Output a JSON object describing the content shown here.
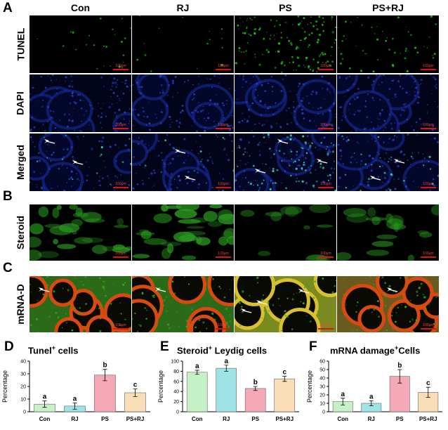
{
  "panels": {
    "A": "A",
    "B": "B",
    "C": "C",
    "D": "D",
    "E": "E",
    "F": "F"
  },
  "columns": [
    "Con",
    "RJ",
    "PS",
    "PS+RJ"
  ],
  "rows": {
    "tunel": "TUNEL",
    "dapi": "DAPI",
    "merged": "Merged",
    "steroid": "Steroid",
    "mrna": "mRNA-D"
  },
  "scale_bar": "100μm",
  "colors": {
    "tunel": "#1db81d",
    "dapi": "#1a2fa8",
    "steroid": "#2a9a20",
    "mrna_green": "#36a81e",
    "mrna_red": "#d84a10",
    "scale_bar": "#e01010",
    "arrow": "#ffffff"
  },
  "chart_data": [
    {
      "type": "bar",
      "title": "Tunel",
      "title_sup": "+",
      "title_suffix": " cells",
      "ylabel": "Percentage",
      "categories": [
        "Con",
        "RJ",
        "PS",
        "PS+RJ"
      ],
      "values": [
        6,
        4.5,
        29,
        15
      ],
      "errors": [
        2.5,
        2.5,
        4.5,
        3
      ],
      "letters": [
        "a",
        "a",
        "b",
        "c"
      ],
      "bar_colors": [
        "#c6f0c6",
        "#9fe3e6",
        "#f5a8b5",
        "#f8ddb6"
      ],
      "ylim": [
        0,
        40
      ],
      "yticks": [
        0,
        10,
        20,
        30,
        40
      ]
    },
    {
      "type": "bar",
      "title": "Steroid",
      "title_sup": "+",
      "title_suffix": " Leydig cells",
      "ylabel": "Percentage",
      "categories": [
        "Con",
        "RJ",
        "PS",
        "PS+RJ"
      ],
      "values": [
        78,
        86,
        46,
        65
      ],
      "errors": [
        4,
        6,
        4,
        5
      ],
      "letters": [
        "a",
        "a",
        "b",
        "c"
      ],
      "bar_colors": [
        "#c6f0c6",
        "#9fe3e6",
        "#f5a8b5",
        "#f8ddb6"
      ],
      "ylim": [
        0,
        100
      ],
      "yticks": [
        0,
        20,
        40,
        60,
        80,
        100
      ]
    },
    {
      "type": "bar",
      "title": "mRNA damage",
      "title_sup": "+",
      "title_suffix": "Cells",
      "ylabel": "Percentage",
      "categories": [
        "Con",
        "RJ",
        "PS",
        "PS+RJ"
      ],
      "values": [
        12,
        10,
        42,
        23
      ],
      "errors": [
        4,
        3,
        8,
        6
      ],
      "letters": [
        "a",
        "a",
        "b",
        "c"
      ],
      "bar_colors": [
        "#c6f0c6",
        "#9fe3e6",
        "#f5a8b5",
        "#f8ddb6"
      ],
      "ylim": [
        0,
        60
      ],
      "yticks": [
        0,
        10,
        20,
        30,
        40,
        50,
        60
      ]
    }
  ]
}
